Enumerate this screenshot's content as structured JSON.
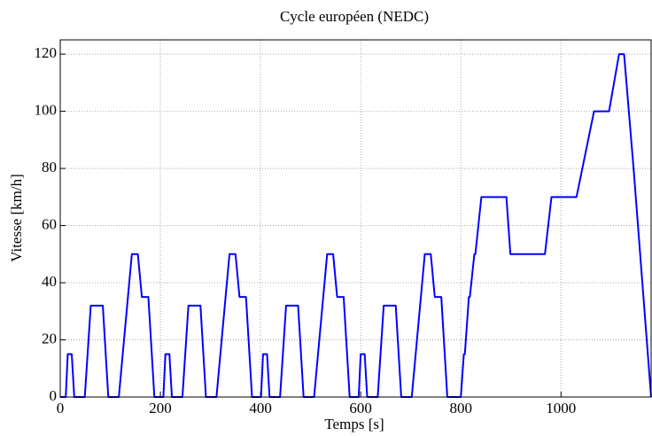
{
  "chart_data": {
    "type": "line",
    "title": "Cycle européen (NEDC)",
    "xlabel": "Temps [s]",
    "ylabel": "Vitesse [km/h]",
    "x": [
      0,
      11,
      15,
      23,
      28,
      49,
      61,
      85,
      96,
      117,
      143,
      155,
      163,
      176,
      188,
      195,
      206,
      210,
      218,
      223,
      244,
      256,
      280,
      291,
      312,
      338,
      350,
      358,
      371,
      383,
      390,
      401,
      405,
      413,
      418,
      439,
      451,
      475,
      486,
      507,
      533,
      545,
      553,
      566,
      578,
      585,
      596,
      600,
      608,
      613,
      634,
      646,
      670,
      681,
      702,
      728,
      740,
      748,
      761,
      773,
      780,
      800,
      806,
      808,
      816,
      818,
      827,
      829,
      841,
      891,
      899,
      968,
      981,
      1031,
      1066,
      1096,
      1116,
      1126,
      1145,
      1180
    ],
    "values": [
      0,
      0,
      15,
      15,
      0,
      0,
      32,
      32,
      0,
      0,
      50,
      50,
      35,
      35,
      0,
      0,
      0,
      15,
      15,
      0,
      0,
      32,
      32,
      0,
      0,
      50,
      50,
      35,
      35,
      0,
      0,
      0,
      15,
      15,
      0,
      0,
      32,
      32,
      0,
      0,
      50,
      50,
      35,
      35,
      0,
      0,
      0,
      15,
      15,
      0,
      0,
      32,
      32,
      0,
      0,
      50,
      50,
      35,
      35,
      0,
      0,
      0,
      15,
      15,
      35,
      35,
      50,
      50,
      70,
      70,
      50,
      50,
      70,
      70,
      100,
      100,
      120,
      120,
      80,
      0
    ],
    "color": "#0000ff",
    "xlim": [
      0,
      1180
    ],
    "xticks": [
      0,
      200,
      400,
      600,
      800,
      1000
    ],
    "ylim": [
      0,
      125
    ],
    "yticks": [
      0,
      20,
      40,
      60,
      80,
      100,
      120
    ],
    "grid": true
  }
}
